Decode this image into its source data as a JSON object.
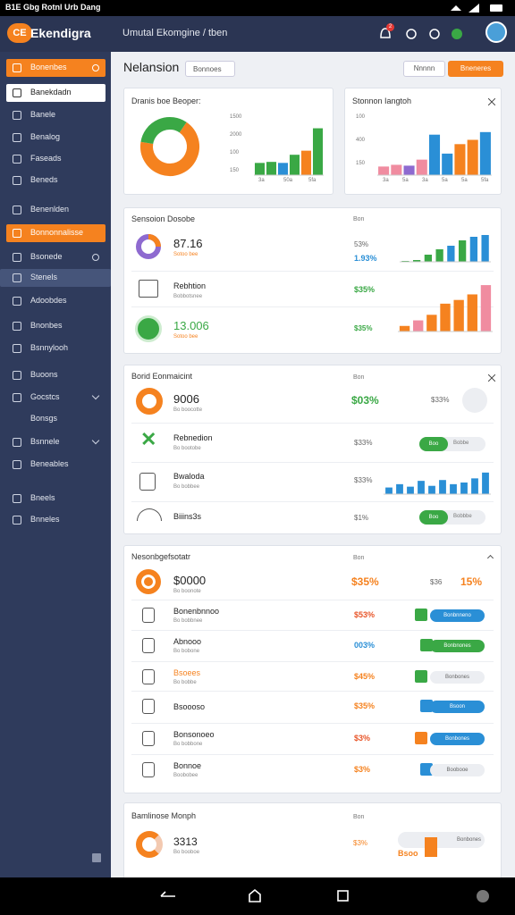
{
  "status_bar": {
    "text": "B1E Gbg Rotnl Urb Dang"
  },
  "header": {
    "logo": "CE",
    "app_name": "Ekendigra",
    "breadcrumb": "Umutal Ekomgine / tben",
    "badge": "2"
  },
  "sidebar": {
    "items": [
      "Bonenbes",
      "Banekdadn",
      "Banele",
      "Benalog",
      "Faseads",
      "Beneds",
      "Benenlden",
      "Bonnonnalisse",
      "Bsonede",
      "Stenels",
      "Adoobdes",
      "Bnonbes",
      "Bsnnylooh",
      "Buoons",
      "Gocstcs",
      "Bonsgs",
      "Bsnnele",
      "Beneables",
      "Bneels",
      "Bnneles"
    ]
  },
  "toolbar": {
    "title": "Nelansion",
    "dropdown": "Bonnoes",
    "button_1": "Nnnnn",
    "button_2": "Bneneres"
  },
  "card_1": {
    "title": "Dranis boe Beoper:",
    "donut": {
      "values": [
        68,
        32
      ],
      "colors": [
        "#f5821f",
        "#3aa845"
      ]
    },
    "chart": {
      "ylim": [
        0,
        50
      ],
      "axis_labels": [
        1500,
        2000,
        100,
        150
      ],
      "x_labels": [
        "3a",
        "50a",
        "5fa"
      ],
      "bars": [
        {
          "value": 12,
          "color": "#3aa845"
        },
        {
          "value": 13,
          "color": "#3aa845"
        },
        {
          "value": 12,
          "color": "#2a8fd6"
        },
        {
          "value": 20,
          "color": "#3aa845"
        },
        {
          "value": 24,
          "color": "#f5821f"
        },
        {
          "value": 46,
          "color": "#3aa845"
        }
      ]
    }
  },
  "card_2": {
    "title": "Stonnon Iangtoh",
    "chart": {
      "ylim": [
        0,
        55
      ],
      "axis_labels": [
        100,
        400,
        150
      ],
      "x_labels": [
        "3a",
        "5a",
        "3a",
        "5a",
        "5a",
        "5fa"
      ],
      "bars": [
        {
          "value": 10,
          "color": "#f08ca0"
        },
        {
          "value": 12,
          "color": "#f08ca0"
        },
        {
          "value": 11,
          "color": "#8e6ad0"
        },
        {
          "value": 18,
          "color": "#f08ca0"
        },
        {
          "value": 47,
          "color": "#2a8fd6"
        },
        {
          "value": 25,
          "color": "#2a8fd6"
        },
        {
          "value": 36,
          "color": "#f5821f"
        },
        {
          "value": 41,
          "color": "#f5821f"
        },
        {
          "value": 50,
          "color": "#2a8fd6"
        }
      ]
    }
  },
  "card_3": {
    "title": "Sensoion Dosobe",
    "aside": "Bon",
    "rows": [
      {
        "value": "87.16",
        "sub": "Sotoo bee",
        "pct": "53%",
        "pct_2": "1.93%"
      },
      {
        "title": "Rebhtion",
        "sub": "Bobbotsnee",
        "pct": "$35%"
      },
      {
        "value": "13.006",
        "sub": "Sotoo bee",
        "pct": "$35%"
      }
    ],
    "chart_1": {
      "ylim": [
        0,
        32
      ],
      "bars": [
        {
          "value": 1,
          "color": "#3aa845"
        },
        {
          "value": 2,
          "color": "#3aa845"
        },
        {
          "value": 8,
          "color": "#3aa845"
        },
        {
          "value": 14,
          "color": "#3aa845"
        },
        {
          "value": 18,
          "color": "#2a8fd6"
        },
        {
          "value": 24,
          "color": "#3aa845"
        },
        {
          "value": 28,
          "color": "#2a8fd6"
        },
        {
          "value": 30,
          "color": "#2a8fd6"
        }
      ]
    },
    "chart_2": {
      "ylim": [
        0,
        52
      ],
      "bars": [
        {
          "value": 6,
          "color": "#f5821f"
        },
        {
          "value": 12,
          "color": "#f08ca0"
        },
        {
          "value": 18,
          "color": "#f5821f"
        },
        {
          "value": 30,
          "color": "#f5821f"
        },
        {
          "value": 34,
          "color": "#f5821f"
        },
        {
          "value": 40,
          "color": "#f5821f"
        },
        {
          "value": 50,
          "color": "#f08ca0"
        }
      ]
    }
  },
  "card_4": {
    "title": "Borid Eonmaicint",
    "aside": "Bon",
    "rows": [
      {
        "value": "9006",
        "sub": "Bo boocotte",
        "pct": "$03%",
        "pct_2": "$33%"
      },
      {
        "title": "Rebnedion",
        "sub": "Bo bootobe",
        "pct": "$33%",
        "toggle": [
          "Boo",
          "Bobbe"
        ]
      },
      {
        "title": "Bwaloda",
        "sub": "Bo bobbee",
        "pct": "$33%"
      },
      {
        "title": "Biiins3s",
        "pct": "$1%",
        "toggle": [
          "Boo",
          "Bobbbe"
        ]
      }
    ],
    "chart": {
      "ylim": [
        0,
        28
      ],
      "bars": [
        {
          "value": 8,
          "color": "#2a8fd6"
        },
        {
          "value": 12,
          "color": "#2a8fd6"
        },
        {
          "value": 9,
          "color": "#2a8fd6"
        },
        {
          "value": 16,
          "color": "#2a8fd6"
        },
        {
          "value": 10,
          "color": "#2a8fd6"
        },
        {
          "value": 17,
          "color": "#2a8fd6"
        },
        {
          "value": 12,
          "color": "#2a8fd6"
        },
        {
          "value": 14,
          "color": "#2a8fd6"
        },
        {
          "value": 19,
          "color": "#2a8fd6"
        },
        {
          "value": 26,
          "color": "#2a8fd6"
        }
      ]
    }
  },
  "card_5": {
    "title": "Nesonbgefsotatr",
    "aside": "Bon",
    "rows": [
      {
        "value": "$0000",
        "sub": "Bo boonote",
        "pct": "$35%",
        "pct_2": "$36",
        "pct_3": "15%"
      },
      {
        "title": "Bonenbnnoo",
        "sub": "Bo bobbnee",
        "pct": "$53%",
        "pill": "Bonbnneno"
      },
      {
        "title": "Abnooo",
        "sub": "Bo bobone",
        "pct": "003%",
        "pill": "Bonbnones"
      },
      {
        "title": "Bsoees",
        "sub": "Bo bobbe",
        "pct": "$45%",
        "pill": "Bonbones"
      },
      {
        "title": "Bsoooso",
        "pct": "$35%",
        "pill": "Bsoon"
      },
      {
        "title": "Bonsonoeo",
        "sub": "Bo bobbone",
        "pct": "$3%",
        "pill": "Bonbones"
      },
      {
        "title": "Bonnoe",
        "sub": "Boobobee",
        "pct": "$3%",
        "pill": "Boobooe"
      }
    ]
  },
  "card_6": {
    "title": "Bamlinose Monph",
    "aside": "Bon",
    "value": "3313",
    "sub": "Bo booboe",
    "pct": "$3%",
    "label": "Bsoo",
    "pill": "Bonbones"
  }
}
